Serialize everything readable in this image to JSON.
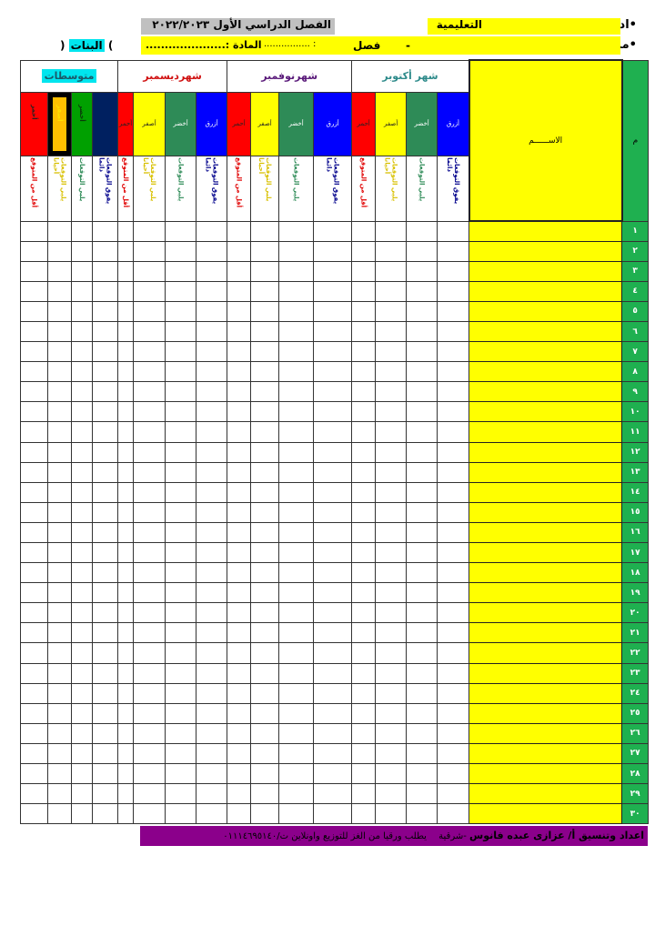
{
  "header": {
    "admin_label": "•ادارة",
    "admin_value": "التعليمية",
    "term": "الفصل الدراسي الأول ٢٠٢٢/٢٠٢٣",
    "school_label": "•مدرسة",
    "dash": "-",
    "class_label": "فصل",
    "class_value": ": ................",
    "subject_label": "المادة :.....................",
    "girls_open": "(",
    "girls": "البنات",
    "girls_close": ")"
  },
  "table": {
    "number_header": "م",
    "name_header": "الاســــــم",
    "groups": [
      {
        "title": "متوسطات",
        "title_color": "#1a5a6a",
        "title_bg": "#00e5ee",
        "cols": [
          {
            "label": "أحمر",
            "bg": "#ff0000",
            "fg": "#222",
            "desc": "أقل من المتوقع",
            "dcolor": "#e00000"
          },
          {
            "label": "أصفر",
            "bg": "#ffc000",
            "fg": "#ffe000",
            "desc": "يلبي التوقعات أحيانا",
            "dcolor": "#d8c000",
            "border": "#000"
          },
          {
            "label": "أخضر",
            "bg": "#00a000",
            "fg": "#0a3a0a",
            "desc": "يلبي التوقعات",
            "dcolor": "#2e8b57"
          },
          {
            "label": "",
            "bg": "#002060",
            "fg": "#fff",
            "desc": "يفوق التوقعات دائما",
            "dcolor": "#00008b"
          }
        ]
      },
      {
        "title": "شهرديسمبر",
        "title_color": "#d01010",
        "cols": [
          {
            "label": "أحمر",
            "bg": "#ff0000",
            "fg": "#222",
            "desc": "أقل من المتوقع",
            "dcolor": "#e00000"
          },
          {
            "label": "أصفر",
            "bg": "#ffff00",
            "fg": "#222",
            "desc": "يلبي التوقعات أحيانا",
            "dcolor": "#d8c000"
          },
          {
            "label": "أخضر",
            "bg": "#2e8b57",
            "fg": "#fff",
            "desc": "يلبي التوقعات",
            "dcolor": "#2e8b57"
          },
          {
            "label": "أزرق",
            "bg": "#0000ff",
            "fg": "#fff",
            "desc": "يفوق التوقعات دائما",
            "dcolor": "#00008b"
          }
        ]
      },
      {
        "title": "شهرنوفمبر",
        "title_color": "#5a1a7a",
        "cols": [
          {
            "label": "أحمر",
            "bg": "#ff0000",
            "fg": "#222",
            "desc": "أقل من المتوقع",
            "dcolor": "#e00000"
          },
          {
            "label": "أصفر",
            "bg": "#ffff00",
            "fg": "#222",
            "desc": "يلبي التوقعات أحيانا",
            "dcolor": "#d8c000"
          },
          {
            "label": "أخضر",
            "bg": "#2e8b57",
            "fg": "#fff",
            "desc": "يلبي التوقعات",
            "dcolor": "#2e8b57"
          },
          {
            "label": "أزرق",
            "bg": "#0000ff",
            "fg": "#fff",
            "desc": "يفوق التوقعات دائما",
            "dcolor": "#00008b"
          }
        ]
      },
      {
        "title": "شهر أكتوبر",
        "title_color": "#2e8b8b",
        "cols": [
          {
            "label": "أحمر",
            "bg": "#ff0000",
            "fg": "#222",
            "desc": "أقل من المتوقع",
            "dcolor": "#e00000"
          },
          {
            "label": "أصفر",
            "bg": "#ffff00",
            "fg": "#222",
            "desc": "يلبي التوقعات أحيانا",
            "dcolor": "#d8c000"
          },
          {
            "label": "أخضر",
            "bg": "#2e8b57",
            "fg": "#fff",
            "desc": "يلبي التوقعات",
            "dcolor": "#2e8b57"
          },
          {
            "label": "أزرق",
            "bg": "#0000ff",
            "fg": "#fff",
            "desc": "يفوق التوقعات دائما",
            "dcolor": "#00008b"
          }
        ]
      }
    ],
    "rows": [
      "١",
      "٢",
      "٣",
      "٤",
      "٥",
      "٦",
      "٧",
      "٨",
      "٩",
      "١٠",
      "١١",
      "١٢",
      "١٣",
      "١٤",
      "١٥",
      "١٦",
      "١٧",
      "١٨",
      "١٩",
      "٢٠",
      "٢١",
      "٢٢",
      "٢٣",
      "٢٤",
      "٢٥",
      "٢٦",
      "٢٧",
      "٢٨",
      "٢٩",
      "٣٠"
    ]
  },
  "footer": {
    "credit": "اعداد وتنسيق أ/ عزازى عبده فانوس",
    "region": "-شرقية",
    "note": "يطلب ورقيا من الغز للتوزيع واونلاين ت/٠١١١٤٦٩٥١٤٠"
  }
}
